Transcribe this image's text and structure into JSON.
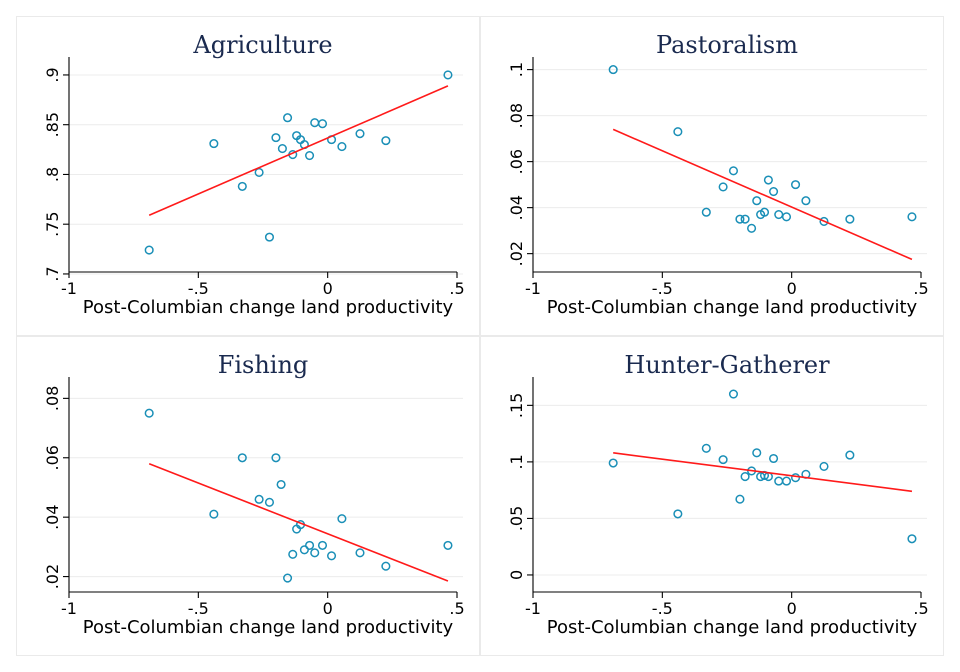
{
  "chart_data": [
    {
      "type": "scatter",
      "title": "Agriculture",
      "xlabel": "Post-Columbian change land productivity",
      "ylabel": "",
      "xlim": [
        -1.0,
        0.5
      ],
      "ylim": [
        0.71,
        0.91
      ],
      "xticks": [
        -1,
        -0.5,
        0,
        0.5
      ],
      "xtick_labels": [
        "-1",
        "-.5",
        "0",
        ".5"
      ],
      "yticks": [
        0.7,
        0.75,
        0.8,
        0.85,
        0.9
      ],
      "ytick_labels": [
        ".7",
        ".75",
        ".8",
        ".85",
        ".9"
      ],
      "grid": true,
      "points": [
        {
          "x": -0.69,
          "y": 0.724
        },
        {
          "x": -0.44,
          "y": 0.831
        },
        {
          "x": -0.33,
          "y": 0.788
        },
        {
          "x": -0.265,
          "y": 0.802
        },
        {
          "x": -0.225,
          "y": 0.737
        },
        {
          "x": -0.2,
          "y": 0.837
        },
        {
          "x": -0.175,
          "y": 0.826
        },
        {
          "x": -0.155,
          "y": 0.857
        },
        {
          "x": -0.135,
          "y": 0.82
        },
        {
          "x": -0.12,
          "y": 0.839
        },
        {
          "x": -0.105,
          "y": 0.835
        },
        {
          "x": -0.09,
          "y": 0.83
        },
        {
          "x": -0.07,
          "y": 0.819
        },
        {
          "x": -0.05,
          "y": 0.852
        },
        {
          "x": -0.02,
          "y": 0.851
        },
        {
          "x": 0.015,
          "y": 0.835
        },
        {
          "x": 0.055,
          "y": 0.828
        },
        {
          "x": 0.125,
          "y": 0.841
        },
        {
          "x": 0.225,
          "y": 0.834
        },
        {
          "x": 0.465,
          "y": 0.9
        }
      ],
      "fit_line": {
        "x": [
          -0.69,
          0.465
        ],
        "y": [
          0.759,
          0.889
        ]
      }
    },
    {
      "type": "scatter",
      "title": "Pastoralism",
      "xlabel": "Post-Columbian change land productivity",
      "ylabel": "",
      "xlim": [
        -1.0,
        0.5
      ],
      "ylim": [
        0.0155,
        0.102
      ],
      "xticks": [
        -1,
        -0.5,
        0,
        0.5
      ],
      "xtick_labels": [
        "-1",
        "-.5",
        "0",
        ".5"
      ],
      "yticks": [
        0.02,
        0.04,
        0.06,
        0.08,
        0.1
      ],
      "ytick_labels": [
        ".02",
        ".04",
        ".06",
        ".08",
        ".1"
      ],
      "grid": true,
      "points": [
        {
          "x": -0.69,
          "y": 0.1
        },
        {
          "x": -0.44,
          "y": 0.073
        },
        {
          "x": -0.33,
          "y": 0.038
        },
        {
          "x": -0.265,
          "y": 0.049
        },
        {
          "x": -0.225,
          "y": 0.056
        },
        {
          "x": -0.2,
          "y": 0.035
        },
        {
          "x": -0.18,
          "y": 0.035
        },
        {
          "x": -0.155,
          "y": 0.031
        },
        {
          "x": -0.135,
          "y": 0.043
        },
        {
          "x": -0.12,
          "y": 0.037
        },
        {
          "x": -0.105,
          "y": 0.038
        },
        {
          "x": -0.09,
          "y": 0.052
        },
        {
          "x": -0.07,
          "y": 0.047
        },
        {
          "x": -0.05,
          "y": 0.037
        },
        {
          "x": -0.02,
          "y": 0.036
        },
        {
          "x": 0.015,
          "y": 0.05
        },
        {
          "x": 0.055,
          "y": 0.043
        },
        {
          "x": 0.125,
          "y": 0.034
        },
        {
          "x": 0.225,
          "y": 0.035
        },
        {
          "x": 0.465,
          "y": 0.036
        }
      ],
      "fit_line": {
        "x": [
          -0.69,
          0.465
        ],
        "y": [
          0.074,
          0.0175
        ]
      }
    },
    {
      "type": "scatter",
      "title": "Fishing",
      "xlabel": "Post-Columbian change land productivity",
      "ylabel": "",
      "xlim": [
        -1.0,
        0.5
      ],
      "ylim": [
        0.0175,
        0.0845
      ],
      "xticks": [
        -1,
        -0.5,
        0,
        0.5
      ],
      "xtick_labels": [
        "-1",
        "-.5",
        "0",
        ".5"
      ],
      "yticks": [
        0.02,
        0.04,
        0.06,
        0.08
      ],
      "ytick_labels": [
        ".02",
        ".04",
        ".06",
        ".08"
      ],
      "grid": true,
      "points": [
        {
          "x": -0.69,
          "y": 0.075
        },
        {
          "x": -0.44,
          "y": 0.041
        },
        {
          "x": -0.33,
          "y": 0.06
        },
        {
          "x": -0.265,
          "y": 0.046
        },
        {
          "x": -0.225,
          "y": 0.045
        },
        {
          "x": -0.2,
          "y": 0.06
        },
        {
          "x": -0.18,
          "y": 0.051
        },
        {
          "x": -0.155,
          "y": 0.0195
        },
        {
          "x": -0.135,
          "y": 0.0275
        },
        {
          "x": -0.12,
          "y": 0.036
        },
        {
          "x": -0.105,
          "y": 0.0375
        },
        {
          "x": -0.09,
          "y": 0.029
        },
        {
          "x": -0.07,
          "y": 0.0305
        },
        {
          "x": -0.05,
          "y": 0.028
        },
        {
          "x": -0.02,
          "y": 0.0305
        },
        {
          "x": 0.015,
          "y": 0.027
        },
        {
          "x": 0.055,
          "y": 0.0395
        },
        {
          "x": 0.125,
          "y": 0.028
        },
        {
          "x": 0.225,
          "y": 0.0235
        },
        {
          "x": 0.465,
          "y": 0.0305
        }
      ],
      "fit_line": {
        "x": [
          -0.69,
          0.465
        ],
        "y": [
          0.058,
          0.0185
        ]
      }
    },
    {
      "type": "scatter",
      "title": "Hunter-Gatherer",
      "xlabel": "Post-Columbian change land productivity",
      "ylabel": "",
      "xlim": [
        -1.0,
        0.5
      ],
      "ylim": [
        -0.008,
        0.168
      ],
      "xticks": [
        -1,
        -0.5,
        0,
        0.5
      ],
      "xtick_labels": [
        "-1",
        "-.5",
        "0",
        ".5"
      ],
      "yticks": [
        0,
        0.05,
        0.1,
        0.15
      ],
      "ytick_labels": [
        "0",
        ".05",
        ".1",
        ".15"
      ],
      "grid": true,
      "points": [
        {
          "x": -0.69,
          "y": 0.099
        },
        {
          "x": -0.44,
          "y": 0.054
        },
        {
          "x": -0.33,
          "y": 0.112
        },
        {
          "x": -0.265,
          "y": 0.102
        },
        {
          "x": -0.225,
          "y": 0.16
        },
        {
          "x": -0.2,
          "y": 0.067
        },
        {
          "x": -0.18,
          "y": 0.087
        },
        {
          "x": -0.155,
          "y": 0.092
        },
        {
          "x": -0.135,
          "y": 0.108
        },
        {
          "x": -0.12,
          "y": 0.087
        },
        {
          "x": -0.105,
          "y": 0.088
        },
        {
          "x": -0.09,
          "y": 0.087
        },
        {
          "x": -0.07,
          "y": 0.103
        },
        {
          "x": -0.05,
          "y": 0.083
        },
        {
          "x": -0.02,
          "y": 0.083
        },
        {
          "x": 0.015,
          "y": 0.086
        },
        {
          "x": 0.055,
          "y": 0.089
        },
        {
          "x": 0.125,
          "y": 0.096
        },
        {
          "x": 0.225,
          "y": 0.106
        },
        {
          "x": 0.465,
          "y": 0.032
        }
      ],
      "fit_line": {
        "x": [
          -0.69,
          0.465
        ],
        "y": [
          0.108,
          0.074
        ]
      }
    }
  ]
}
